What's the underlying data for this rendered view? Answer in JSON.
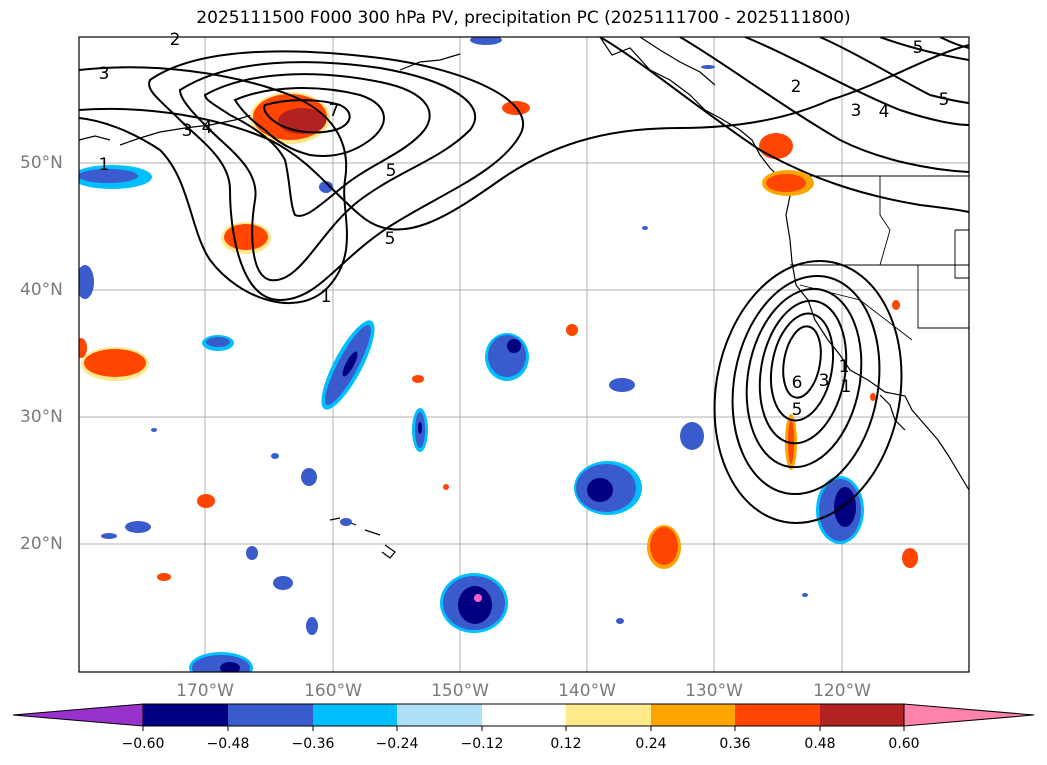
{
  "title": "2025111500 F000 300 hPa PV, precipitation PC (2025111700 - 2025111800)",
  "lat_labels": [
    "50°N",
    "40°N",
    "30°N",
    "20°N"
  ],
  "lon_labels": [
    "170°W",
    "160°W",
    "150°W",
    "140°W",
    "130°W",
    "120°W"
  ],
  "contour_labels": [
    "2",
    "3",
    "3",
    "4",
    "1",
    "5",
    "7",
    "5",
    "1",
    "2",
    "3",
    "4",
    "5",
    "5",
    "6",
    "5",
    "1",
    "3",
    "1"
  ],
  "colorbar": {
    "ticks": [
      "−0.60",
      "−0.48",
      "−0.36",
      "−0.24",
      "−0.12",
      "0.12",
      "0.24",
      "0.36",
      "0.48",
      "0.60"
    ],
    "colors": [
      "#9932CC",
      "#000080",
      "#3A5BCC",
      "#00BFFF",
      "#ADDFF7",
      "#FFFFFF",
      "#FFE98A",
      "#FFA500",
      "#FF4500",
      "#B22222",
      "#FF82AB"
    ]
  },
  "map_colors": {
    "blue_dark": "#000080",
    "blue_mid": "#3A5BCC",
    "blue_light": "#00BFFF",
    "blue_pale": "#ADDFF7",
    "yellow": "#FFE98A",
    "orange": "#FFA500",
    "red_orange": "#FF4500",
    "dark_red": "#B22222",
    "magenta": "#FF5ECF"
  }
}
